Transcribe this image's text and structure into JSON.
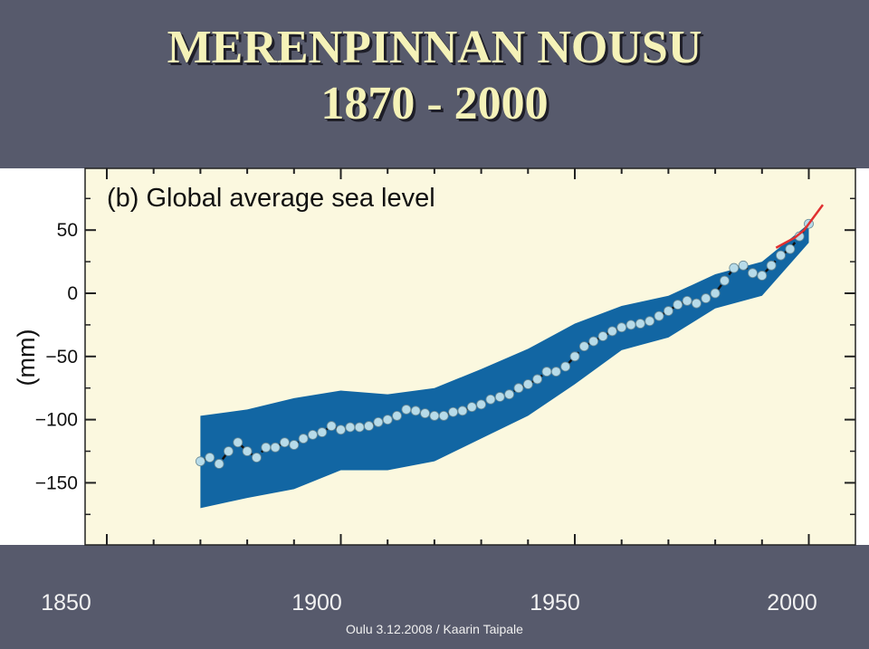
{
  "slide": {
    "title_line1": "MERENPINNAN NOUSU",
    "title_line2": "1870 - 2000",
    "footer": "Oulu 3.12.2008 / Kaarin Taipale"
  },
  "colors": {
    "background": "#575a6c",
    "title": "#f5f2b8",
    "plot_area": "#fbf8df",
    "uncertainty_band": "#1266a3",
    "points": "#b7dbe9",
    "satellite_line": "#e03030"
  },
  "chart_data": {
    "type": "line",
    "title": "(b) Global average sea level",
    "ylabel": "(mm)",
    "xlabel": "",
    "xlim": [
      1850,
      2005
    ],
    "ylim": [
      -190,
      80
    ],
    "x_ticks": [
      1850,
      1900,
      1950,
      2000
    ],
    "y_ticks": [
      50,
      0,
      -50,
      -100,
      -150
    ],
    "grid": false,
    "series": [
      {
        "name": "",
        "kind": "reconstruction_points",
        "x": [
          1870,
          1872,
          1874,
          1876,
          1878,
          1880,
          1882,
          1884,
          1886,
          1888,
          1890,
          1892,
          1894,
          1896,
          1898,
          1900,
          1902,
          1904,
          1906,
          1908,
          1910,
          1912,
          1914,
          1916,
          1918,
          1920,
          1922,
          1924,
          1926,
          1928,
          1930,
          1932,
          1934,
          1936,
          1938,
          1940,
          1942,
          1944,
          1946,
          1948,
          1950,
          1952,
          1954,
          1956,
          1958,
          1960,
          1962,
          1964,
          1966,
          1968,
          1970,
          1972,
          1974,
          1976,
          1978,
          1980,
          1982,
          1984,
          1986,
          1988,
          1990,
          1992,
          1994,
          1996,
          1998,
          2000
        ],
        "y": [
          -133,
          -130,
          -135,
          -125,
          -118,
          -125,
          -130,
          -122,
          -122,
          -118,
          -120,
          -115,
          -112,
          -110,
          -105,
          -108,
          -106,
          -106,
          -105,
          -102,
          -100,
          -97,
          -92,
          -93,
          -95,
          -97,
          -97,
          -94,
          -93,
          -90,
          -88,
          -84,
          -82,
          -80,
          -75,
          -72,
          -68,
          -62,
          -62,
          -58,
          -50,
          -42,
          -38,
          -34,
          -30,
          -27,
          -25,
          -24,
          -22,
          -18,
          -14,
          -9,
          -6,
          -8,
          -4,
          0,
          10,
          20,
          22,
          16,
          14,
          22,
          30,
          35,
          45,
          55
        ]
      },
      {
        "name": "",
        "kind": "uncertainty_band",
        "x": [
          1870,
          1880,
          1890,
          1900,
          1910,
          1920,
          1930,
          1940,
          1950,
          1960,
          1970,
          1980,
          1990,
          2000
        ],
        "lower": [
          -170,
          -162,
          -155,
          -140,
          -140,
          -133,
          -115,
          -97,
          -72,
          -45,
          -35,
          -12,
          -2,
          40
        ],
        "upper": [
          -97,
          -92,
          -83,
          -77,
          -80,
          -75,
          -60,
          -44,
          -24,
          -10,
          -2,
          15,
          25,
          55
        ]
      },
      {
        "name": "",
        "kind": "satellite",
        "x": [
          1993,
          1995,
          1997,
          1999,
          2001,
          2003
        ],
        "y": [
          36,
          40,
          44,
          50,
          60,
          70
        ]
      }
    ]
  }
}
